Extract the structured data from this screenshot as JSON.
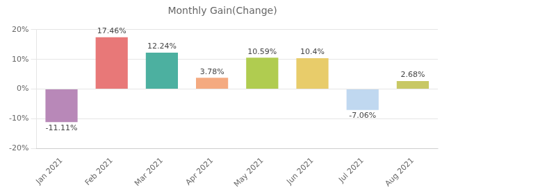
{
  "chart_data": {
    "type": "bar",
    "title": "Monthly Gain(Change)",
    "categories": [
      "Jan 2021",
      "Feb 2021",
      "Mar 2021",
      "Apr 2021",
      "May 2021",
      "Jun 2021",
      "Jul 2021",
      "Aug 2021"
    ],
    "values": [
      -11.11,
      17.46,
      12.24,
      3.78,
      10.59,
      10.4,
      -7.06,
      2.68
    ],
    "value_labels": [
      "-11.11%",
      "17.46%",
      "12.24%",
      "3.78%",
      "10.59%",
      "10.4%",
      "-7.06%",
      "2.68%"
    ],
    "colors": [
      "#b888b8",
      "#e87878",
      "#4cb0a0",
      "#f4aa80",
      "#b0cc50",
      "#e8cc6a",
      "#c0d8f0",
      "#c8c864"
    ],
    "ylim": [
      -20,
      20
    ],
    "yticks": [
      {
        "value": -20,
        "label": "-20%"
      },
      {
        "value": -10,
        "label": "-10%"
      },
      {
        "value": 0,
        "label": "0%"
      },
      {
        "value": 10,
        "label": "10%"
      },
      {
        "value": 20,
        "label": "20%"
      }
    ],
    "grid": true,
    "data_labels": true
  }
}
